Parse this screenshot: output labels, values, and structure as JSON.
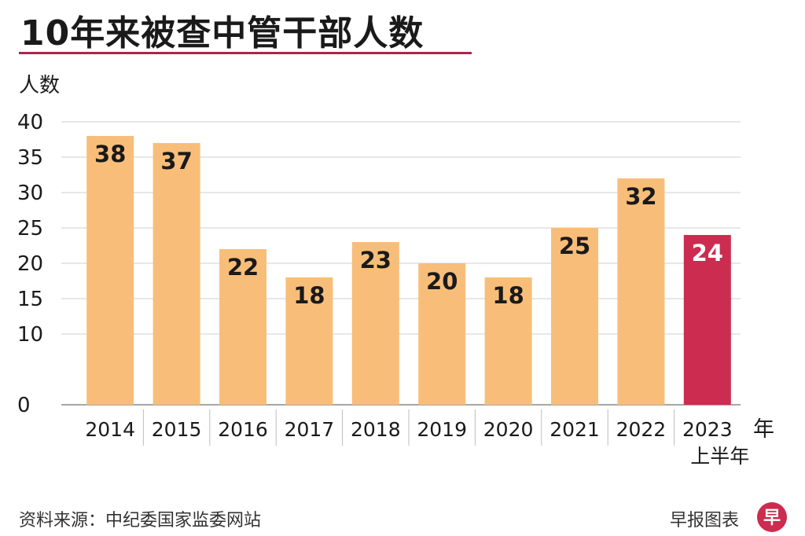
{
  "header": {
    "title": "10年来被查中管干部人数"
  },
  "footer": {
    "source": "资料来源：中纪委国家监委网站",
    "brand": "早报图表",
    "logo_glyph": "早"
  },
  "colors": {
    "bar": "#f8be79",
    "highlight": "#cc2c4f",
    "accent_rule": "#b0244a",
    "grid": "#cfcfcf",
    "text": "#1a1a1a"
  },
  "chart_data": {
    "type": "bar",
    "title": "10年来被查中管干部人数",
    "ylabel": "人数",
    "xlabel": "年",
    "ylim": [
      0,
      40
    ],
    "yticks": [
      0,
      10,
      15,
      20,
      25,
      30,
      35,
      40
    ],
    "grid": true,
    "categories": [
      "2014",
      "2015",
      "2016",
      "2017",
      "2018",
      "2019",
      "2020",
      "2021",
      "2022",
      "2023"
    ],
    "category_sublabels": [
      "",
      "",
      "",
      "",
      "",
      "",
      "",
      "",
      "",
      "上半年"
    ],
    "values": [
      38,
      37,
      22,
      18,
      23,
      20,
      18,
      25,
      32,
      24
    ],
    "highlight_index": 9
  }
}
